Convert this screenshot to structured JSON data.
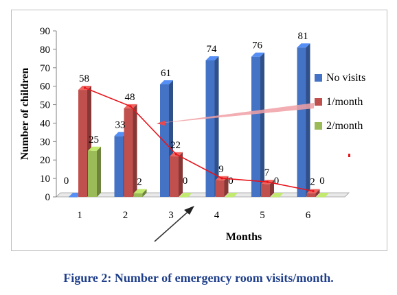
{
  "caption": "Figure 2: Number of emergency room visits/month.",
  "colors": {
    "no_visits": "#4472c4",
    "one_month": "#c0504d",
    "two_month": "#9bbb59",
    "trend_line": "#e8131b",
    "caption": "#1f3f8a"
  },
  "chart_data": {
    "type": "bar",
    "categories": [
      "1",
      "2",
      "3",
      "4",
      "5",
      "6"
    ],
    "series": [
      {
        "name": "No visits",
        "values": [
          0,
          33,
          61,
          74,
          76,
          81
        ]
      },
      {
        "name": "1/month",
        "values": [
          58,
          48,
          22,
          9,
          7,
          2
        ]
      },
      {
        "name": "2/month",
        "values": [
          25,
          2,
          0,
          0,
          0,
          0
        ]
      }
    ],
    "trend": {
      "series": "1/month",
      "type": "line"
    },
    "xlabel": "Months",
    "ylabel": "Number of children",
    "ylim": [
      0,
      90
    ],
    "yticks": [
      0,
      10,
      20,
      30,
      40,
      50,
      60,
      70,
      80,
      90
    ],
    "grid": false,
    "legend": "right",
    "style": "3d-clustered-column",
    "annotations": [
      "arrow pointing to month 3",
      "callout from legend to 1/month trend line"
    ]
  }
}
